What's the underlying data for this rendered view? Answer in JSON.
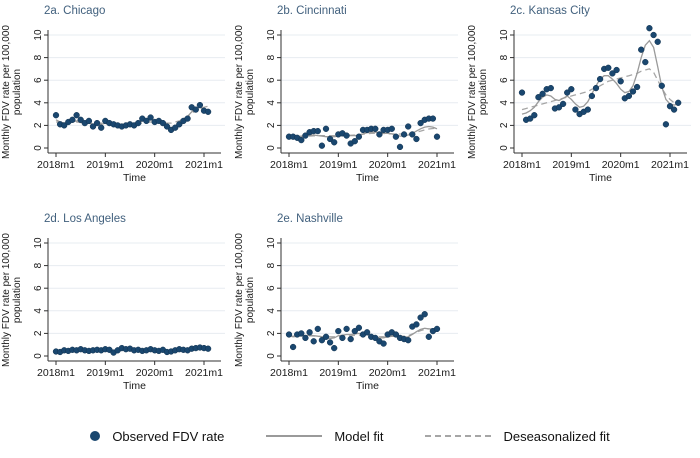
{
  "colors": {
    "dot": "#1a476f",
    "dot_edge": "#12324f",
    "model_fit": "#9a9a9a",
    "deseason_fit": "#a6a6a6",
    "grid": "#e7ecf1",
    "axis": "#303030",
    "tick_text": "#1a1a1a",
    "title_text": "#42617e",
    "background": "#ffffff"
  },
  "legend": {
    "observed_label": "Observed FDV rate",
    "model_label": "Model fit",
    "deseason_label": "Deseasonalized fit"
  },
  "axis": {
    "xlabel": "Time",
    "ylabel_line1": "Monthly FDV rate per 100,000",
    "ylabel_line2": "population",
    "x_tick_labels": [
      "2018m1",
      "2019m1",
      "2020m1",
      "2021m1"
    ],
    "x_tick_months": [
      0,
      12,
      24,
      36
    ],
    "y_ticks": [
      0,
      2,
      4,
      6,
      8,
      10
    ],
    "ylim": [
      0,
      10
    ],
    "x_range_months": 36
  },
  "chart_data": [
    {
      "id": "2a",
      "title": "2a. Chicago",
      "type": "scatter",
      "x_start_label": "2018m1",
      "observed": [
        2.9,
        2.1,
        2.0,
        2.3,
        2.5,
        2.9,
        2.5,
        2.2,
        2.4,
        1.9,
        2.2,
        1.8,
        2.4,
        2.2,
        2.1,
        2.0,
        1.9,
        2.0,
        2.1,
        2.0,
        2.2,
        2.6,
        2.4,
        2.7,
        2.3,
        2.4,
        2.2,
        1.9,
        1.6,
        1.8,
        2.1,
        2.4,
        2.6,
        3.6,
        3.4,
        3.8,
        3.3,
        3.2
      ],
      "model_fit": [
        2.5,
        2.3,
        2.2,
        2.2,
        2.3,
        2.4,
        2.4,
        2.3,
        2.2,
        2.1,
        2.1,
        2.1,
        2.2,
        2.2,
        2.1,
        2.0,
        2.0,
        2.0,
        2.1,
        2.1,
        2.2,
        2.4,
        2.5,
        2.5,
        2.4,
        2.3,
        2.1,
        1.9,
        1.8,
        1.9,
        2.1,
        2.4,
        2.8,
        3.2,
        3.5,
        3.6,
        3.4,
        3.3
      ],
      "deseasonalized_fit": [
        2.3,
        2.3,
        2.3,
        2.3,
        2.3,
        2.3,
        2.25,
        2.2,
        2.2,
        2.2,
        2.2,
        2.2,
        2.15,
        2.1,
        2.1,
        2.1,
        2.1,
        2.1,
        2.1,
        2.1,
        2.15,
        2.2,
        2.25,
        2.3,
        2.3,
        2.3,
        2.25,
        2.2,
        2.2,
        2.3,
        2.4,
        2.6,
        2.8,
        3.1,
        3.3,
        3.5,
        3.6,
        3.7
      ]
    },
    {
      "id": "2b",
      "title": "2b. Cincinnati",
      "type": "scatter",
      "x_start_label": "2018m1",
      "observed": [
        1.0,
        1.0,
        0.9,
        0.7,
        1.1,
        1.4,
        1.5,
        1.5,
        0.2,
        1.7,
        0.8,
        0.5,
        1.2,
        1.3,
        1.1,
        0.4,
        0.6,
        1.0,
        1.6,
        1.6,
        1.7,
        1.7,
        1.2,
        1.6,
        1.6,
        1.7,
        1.0,
        0.1,
        1.2,
        1.9,
        1.2,
        0.8,
        2.2,
        2.5,
        2.6,
        2.6,
        1.0
      ],
      "model_fit": [
        1.0,
        1.0,
        1.0,
        1.05,
        1.1,
        1.15,
        1.15,
        1.1,
        1.05,
        1.0,
        1.0,
        1.0,
        1.05,
        1.1,
        1.1,
        1.1,
        1.1,
        1.15,
        1.25,
        1.35,
        1.4,
        1.4,
        1.35,
        1.3,
        1.3,
        1.25,
        1.15,
        1.05,
        1.05,
        1.15,
        1.3,
        1.5,
        1.7,
        1.85,
        1.9,
        1.85,
        1.7
      ],
      "deseasonalized_fit": [
        0.95,
        0.97,
        1.0,
        1.0,
        1.02,
        1.05,
        1.07,
        1.08,
        1.1,
        1.1,
        1.1,
        1.1,
        1.1,
        1.1,
        1.1,
        1.12,
        1.15,
        1.18,
        1.22,
        1.26,
        1.3,
        1.3,
        1.3,
        1.28,
        1.26,
        1.25,
        1.24,
        1.24,
        1.25,
        1.28,
        1.33,
        1.4,
        1.5,
        1.6,
        1.68,
        1.73,
        1.75
      ]
    },
    {
      "id": "2c",
      "title": "2c. Kansas City",
      "type": "scatter",
      "x_start_label": "2018m1",
      "observed": [
        4.9,
        2.5,
        2.6,
        2.9,
        4.5,
        4.8,
        5.2,
        5.3,
        3.5,
        3.6,
        3.9,
        4.9,
        5.2,
        3.4,
        3.0,
        3.2,
        3.4,
        4.6,
        5.3,
        6.1,
        7.0,
        7.1,
        6.6,
        6.9,
        5.9,
        4.4,
        4.6,
        5.0,
        5.4,
        8.7,
        7.6,
        10.6,
        10.0,
        9.4,
        5.5,
        2.1,
        3.7,
        3.4,
        4.0
      ],
      "model_fit": [
        3.0,
        3.1,
        3.3,
        3.6,
        4.1,
        4.5,
        4.7,
        4.6,
        4.3,
        4.2,
        4.4,
        4.6,
        4.3,
        3.9,
        3.6,
        3.7,
        4.1,
        4.8,
        5.5,
        6.1,
        6.4,
        6.4,
        6.1,
        5.7,
        5.2,
        4.9,
        5.0,
        5.5,
        6.6,
        8.0,
        9.1,
        9.5,
        8.9,
        7.2,
        5.4,
        4.3,
        3.9,
        3.8,
        3.9
      ],
      "deseasonalized_fit": [
        3.4,
        3.5,
        3.6,
        3.7,
        3.8,
        3.9,
        4.0,
        4.1,
        4.2,
        4.3,
        4.4,
        4.5,
        4.6,
        4.7,
        4.8,
        4.9,
        5.0,
        5.2,
        5.3,
        5.5,
        5.7,
        5.9,
        6.0,
        6.1,
        6.2,
        6.3,
        6.4,
        6.5,
        6.6,
        6.8,
        6.9,
        7.0,
        6.7,
        6.0,
        5.3,
        4.7,
        4.3,
        4.0,
        3.8
      ]
    },
    {
      "id": "2d",
      "title": "2d. Los Angeles",
      "type": "scatter",
      "x_start_label": "2018m1",
      "observed": [
        0.4,
        0.35,
        0.5,
        0.45,
        0.55,
        0.5,
        0.6,
        0.5,
        0.45,
        0.5,
        0.55,
        0.5,
        0.6,
        0.55,
        0.3,
        0.5,
        0.7,
        0.6,
        0.65,
        0.5,
        0.55,
        0.45,
        0.5,
        0.6,
        0.5,
        0.45,
        0.55,
        0.35,
        0.4,
        0.5,
        0.6,
        0.55,
        0.5,
        0.65,
        0.7,
        0.75,
        0.7,
        0.65
      ],
      "model_fit": [
        0.45,
        0.45,
        0.46,
        0.47,
        0.5,
        0.52,
        0.53,
        0.52,
        0.5,
        0.5,
        0.51,
        0.52,
        0.53,
        0.52,
        0.5,
        0.52,
        0.56,
        0.58,
        0.58,
        0.55,
        0.52,
        0.5,
        0.52,
        0.54,
        0.52,
        0.5,
        0.48,
        0.45,
        0.45,
        0.5,
        0.55,
        0.57,
        0.57,
        0.6,
        0.65,
        0.68,
        0.68,
        0.67
      ],
      "deseasonalized_fit": [
        0.47,
        0.47,
        0.48,
        0.48,
        0.49,
        0.5,
        0.5,
        0.5,
        0.5,
        0.5,
        0.51,
        0.51,
        0.52,
        0.52,
        0.52,
        0.53,
        0.54,
        0.54,
        0.54,
        0.53,
        0.53,
        0.52,
        0.52,
        0.52,
        0.5,
        0.5,
        0.49,
        0.48,
        0.48,
        0.5,
        0.52,
        0.55,
        0.57,
        0.6,
        0.63,
        0.65,
        0.66,
        0.67
      ]
    },
    {
      "id": "2e",
      "title": "2e. Nashville",
      "type": "scatter",
      "x_start_label": "2018m1",
      "observed": [
        1.9,
        0.8,
        1.9,
        2.0,
        1.6,
        2.1,
        1.3,
        2.4,
        1.4,
        1.7,
        1.2,
        0.7,
        2.2,
        1.6,
        2.4,
        1.5,
        2.2,
        2.5,
        1.9,
        2.1,
        1.7,
        1.6,
        1.3,
        1.1,
        1.9,
        2.1,
        1.9,
        1.6,
        1.5,
        1.4,
        2.6,
        2.8,
        3.4,
        3.7,
        1.7,
        2.2,
        2.4
      ],
      "model_fit": [
        1.8,
        1.7,
        1.75,
        1.8,
        1.8,
        1.85,
        1.8,
        1.75,
        1.7,
        1.6,
        1.55,
        1.6,
        1.8,
        1.85,
        1.9,
        1.9,
        1.95,
        2.0,
        1.95,
        1.9,
        1.8,
        1.7,
        1.6,
        1.6,
        1.7,
        1.75,
        1.75,
        1.7,
        1.65,
        1.7,
        1.9,
        2.15,
        2.35,
        2.45,
        2.4,
        2.35,
        2.4
      ],
      "deseasonalized_fit": [
        1.75,
        1.75,
        1.76,
        1.77,
        1.78,
        1.78,
        1.77,
        1.75,
        1.72,
        1.7,
        1.7,
        1.7,
        1.72,
        1.75,
        1.78,
        1.8,
        1.82,
        1.84,
        1.84,
        1.82,
        1.78,
        1.75,
        1.72,
        1.7,
        1.72,
        1.74,
        1.75,
        1.75,
        1.75,
        1.8,
        1.95,
        2.1,
        2.25,
        2.35,
        2.4,
        2.4,
        2.4
      ]
    }
  ]
}
